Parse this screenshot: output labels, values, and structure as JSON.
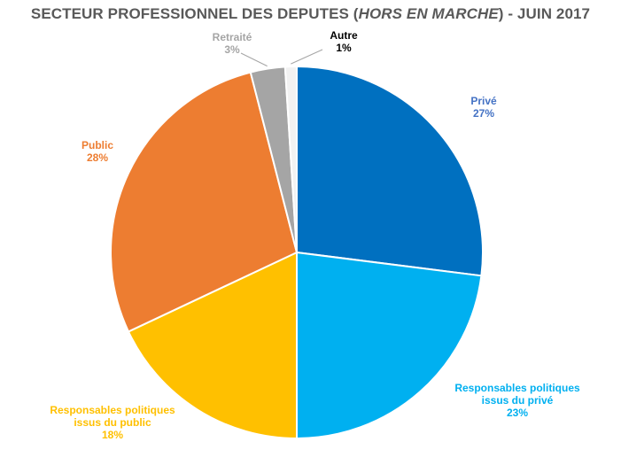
{
  "title": {
    "before": "SECTEUR PROFESSIONNEL DES DEPUTES (",
    "italic": "HORS EN MARCHE",
    "after": ") - JUIN 2017"
  },
  "chart_data": {
    "type": "pie",
    "title": "SECTEUR PROFESSIONNEL DES DEPUTES (HORS EN MARCHE) - JUIN 2017",
    "start_angle_deg": 0,
    "direction": "clockwise",
    "slices": [
      {
        "label": [
          "Privé"
        ],
        "value": 27,
        "display": "27%",
        "color": "#0070C0",
        "label_color": "#4472C4"
      },
      {
        "label": [
          "Responsables politiques",
          "issus du privé"
        ],
        "value": 23,
        "display": "23%",
        "color": "#00B0F0",
        "label_color": "#00B0F0"
      },
      {
        "label": [
          "Responsables politiques",
          "issus du public"
        ],
        "value": 18,
        "display": "18%",
        "color": "#FFC000",
        "label_color": "#FFC000"
      },
      {
        "label": [
          "Public"
        ],
        "value": 28,
        "display": "28%",
        "color": "#ED7D31",
        "label_color": "#ED7D31"
      },
      {
        "label": [
          "Retraité"
        ],
        "value": 3,
        "display": "3%",
        "color": "#A5A5A5",
        "label_color": "#A5A5A5"
      },
      {
        "label": [
          "Autre"
        ],
        "value": 1,
        "display": "1%",
        "color": "#F2F2F2",
        "label_color": "#000000"
      }
    ]
  }
}
